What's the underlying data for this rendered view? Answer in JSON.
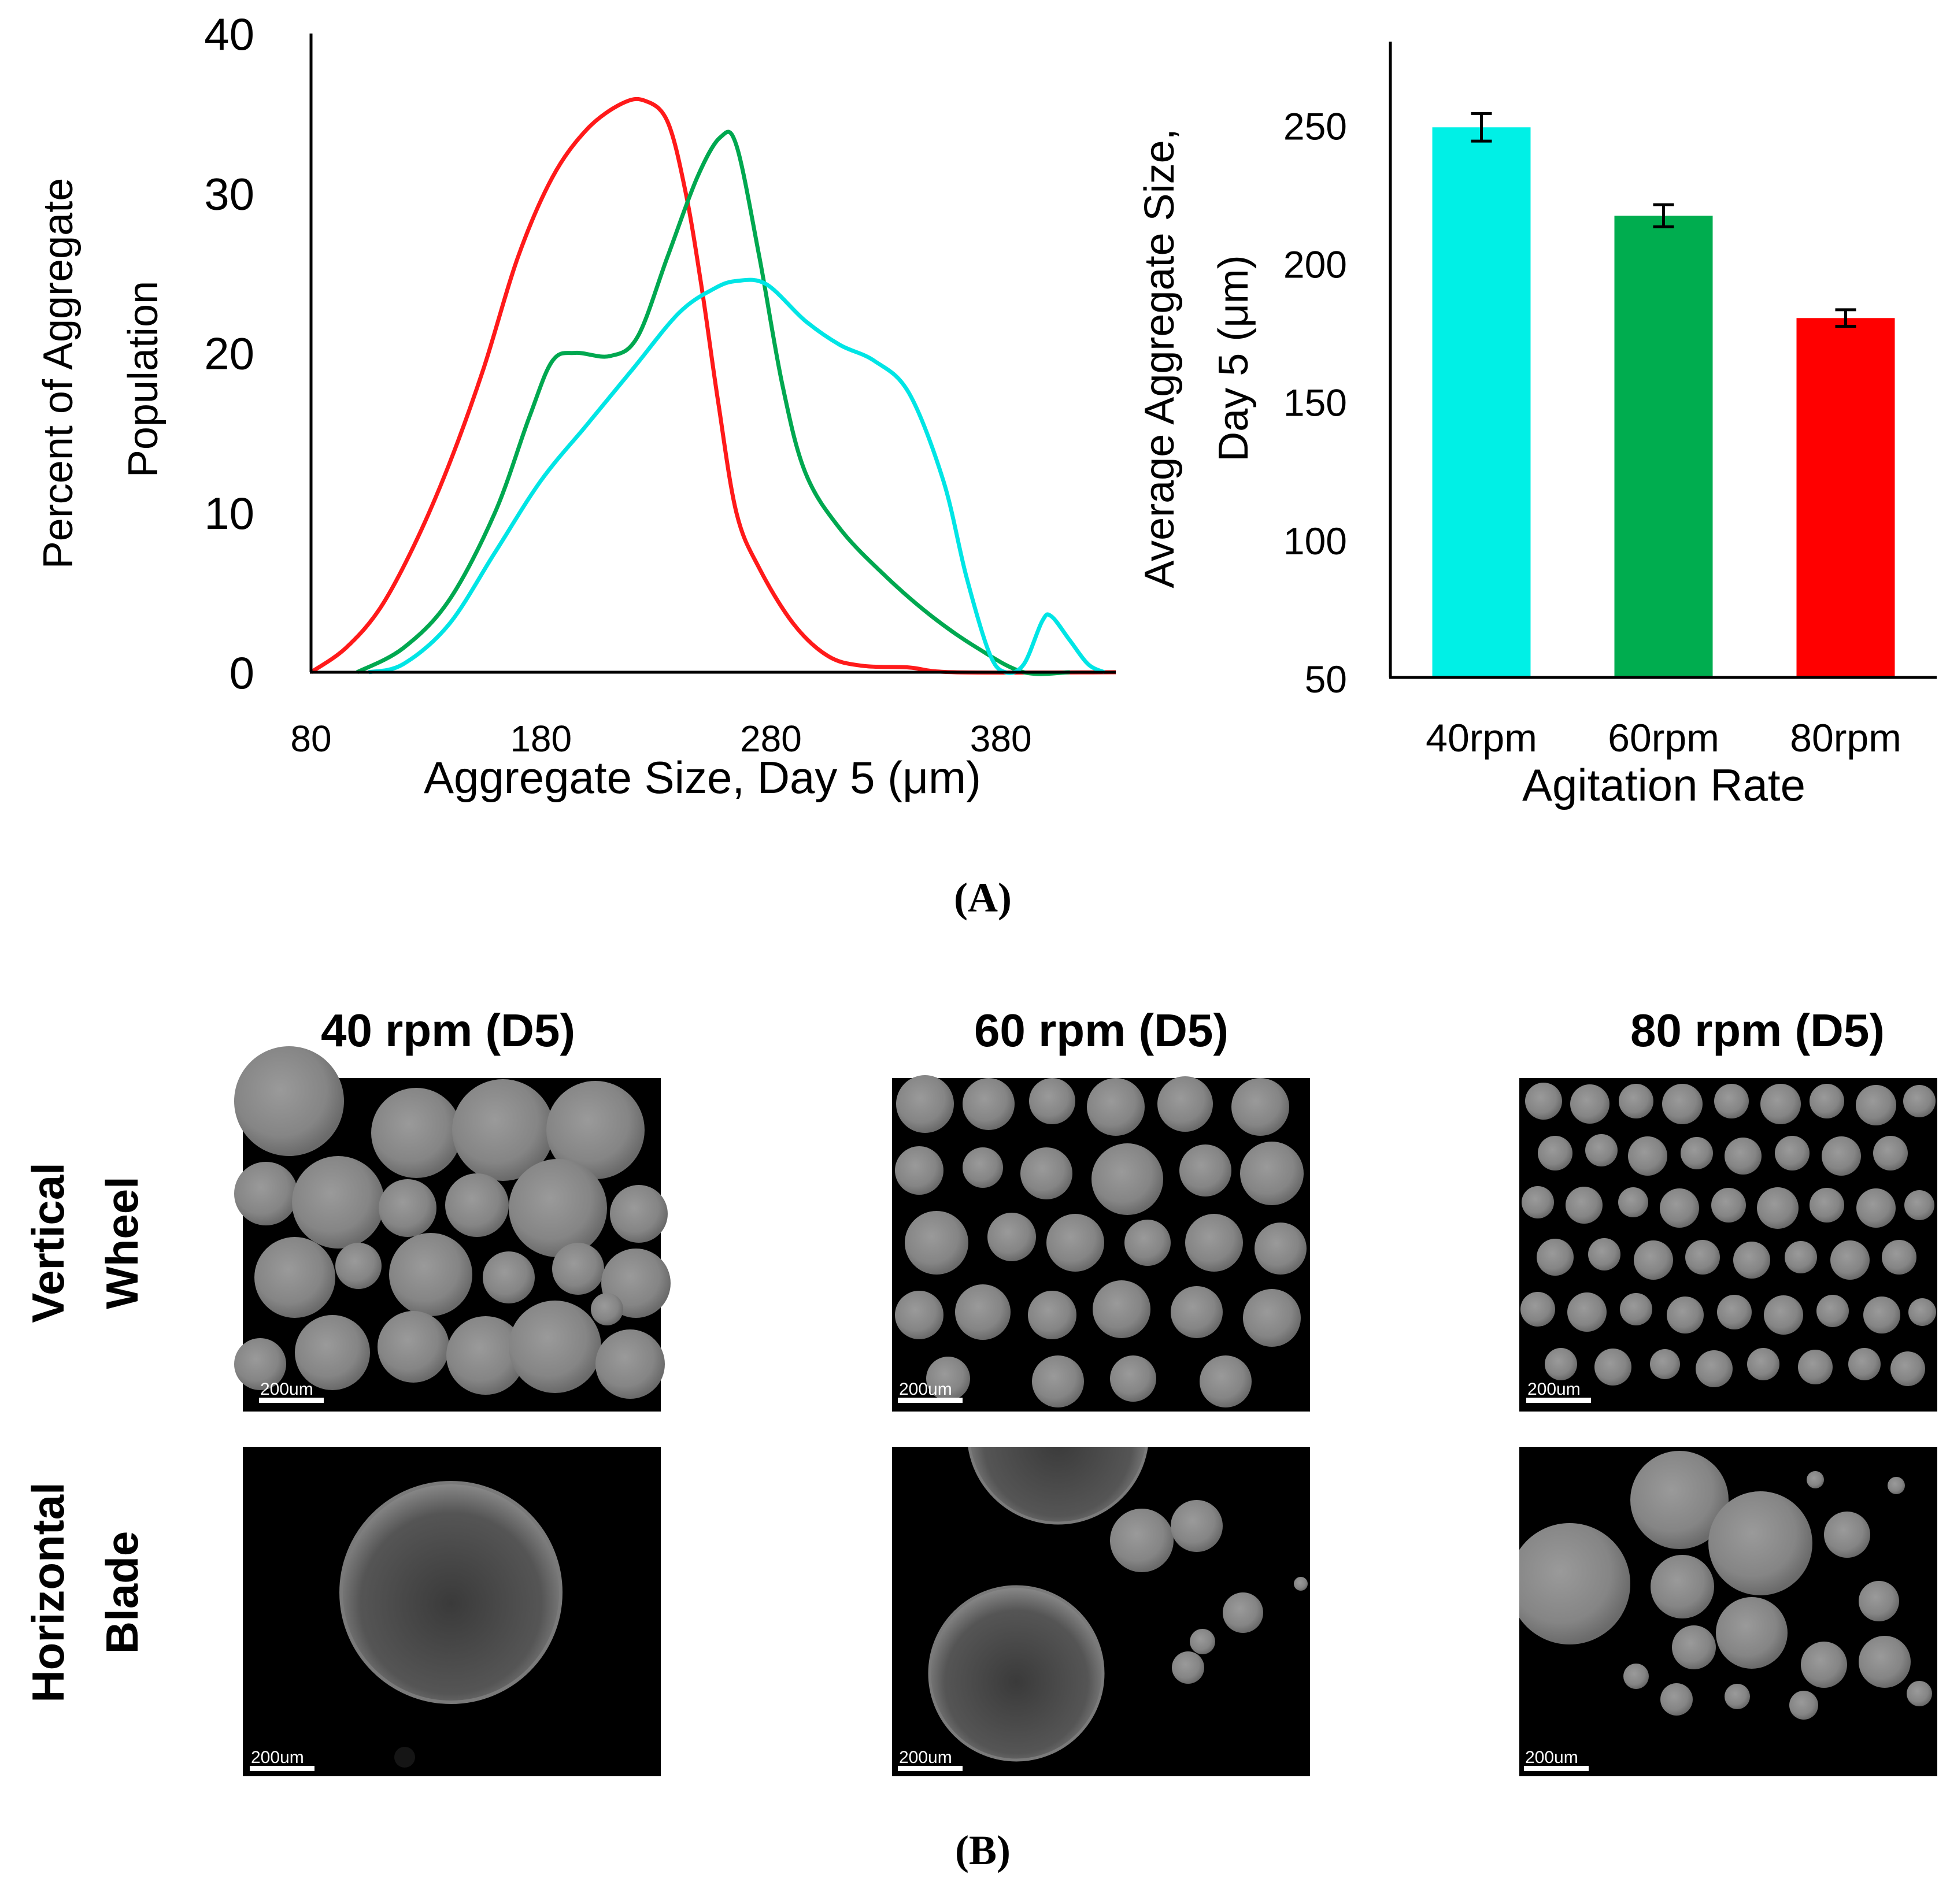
{
  "chart_data": [
    {
      "type": "line",
      "xlabel": "Aggregate Size,  Day 5 (μm)",
      "ylabel_lines": [
        "Percent of Aggregate",
        "Population"
      ],
      "xlim": [
        80,
        430
      ],
      "ylim": [
        0,
        40
      ],
      "xticks": [
        80,
        180,
        280,
        380
      ],
      "yticks": [
        0,
        10,
        20,
        30,
        40
      ],
      "series": [
        {
          "name": "80rpm",
          "color": "#ff1a1a",
          "points": [
            [
              80,
              0
            ],
            [
              95,
              1.5
            ],
            [
              110,
              4
            ],
            [
              125,
              8
            ],
            [
              140,
              13
            ],
            [
              155,
              19
            ],
            [
              170,
              26
            ],
            [
              185,
              31
            ],
            [
              200,
              34
            ],
            [
              215,
              35.6
            ],
            [
              225,
              35.8
            ],
            [
              235,
              34.5
            ],
            [
              243,
              30
            ],
            [
              250,
              24
            ],
            [
              257,
              17
            ],
            [
              265,
              10
            ],
            [
              275,
              6.5
            ],
            [
              290,
              3
            ],
            [
              305,
              1
            ],
            [
              320,
              0.4
            ],
            [
              340,
              0.3
            ],
            [
              360,
              0
            ],
            [
              430,
              0
            ]
          ]
        },
        {
          "name": "60rpm",
          "color": "#00a850",
          "points": [
            [
              100,
              0
            ],
            [
              120,
              1.5
            ],
            [
              140,
              4.5
            ],
            [
              160,
              10
            ],
            [
              175,
              16
            ],
            [
              185,
              19.5
            ],
            [
              195,
              20
            ],
            [
              210,
              19.8
            ],
            [
              222,
              21
            ],
            [
              235,
              26
            ],
            [
              248,
              31
            ],
            [
              258,
              33.5
            ],
            [
              265,
              33
            ],
            [
              275,
              26
            ],
            [
              285,
              18
            ],
            [
              295,
              12.5
            ],
            [
              310,
              9
            ],
            [
              330,
              6
            ],
            [
              350,
              3.5
            ],
            [
              370,
              1.5
            ],
            [
              390,
              0
            ],
            [
              410,
              0
            ]
          ]
        },
        {
          "name": "40rpm",
          "color": "#00e5e5",
          "points": [
            [
              105,
              0
            ],
            [
              120,
              0.5
            ],
            [
              140,
              3
            ],
            [
              160,
              7.5
            ],
            [
              180,
              12
            ],
            [
              200,
              15.5
            ],
            [
              220,
              19
            ],
            [
              240,
              22.5
            ],
            [
              255,
              24
            ],
            [
              265,
              24.5
            ],
            [
              278,
              24.3
            ],
            [
              295,
              22
            ],
            [
              310,
              20.5
            ],
            [
              325,
              19.5
            ],
            [
              340,
              17.5
            ],
            [
              355,
              12
            ],
            [
              365,
              6
            ],
            [
              375,
              1.2
            ],
            [
              382,
              0
            ],
            [
              390,
              0.5
            ],
            [
              398,
              3.2
            ],
            [
              402,
              3.5
            ],
            [
              410,
              2
            ],
            [
              418,
              0.5
            ],
            [
              425,
              0
            ]
          ]
        }
      ]
    },
    {
      "type": "bar",
      "categories": [
        "40rpm",
        "60rpm",
        "80rpm"
      ],
      "values": [
        249,
        217,
        180
      ],
      "errors": [
        5,
        4,
        3
      ],
      "colors": [
        "#00f0e6",
        "#00ad4f",
        "#ff0000"
      ],
      "xlabel": "Agitation Rate",
      "ylabel_lines": [
        "Average Aggregate Size,",
        "Day 5 (μm)"
      ],
      "ylim": [
        50,
        280
      ],
      "yticks": [
        50,
        100,
        150,
        200,
        250
      ]
    }
  ],
  "panel_labels": {
    "a": "(A)",
    "b": "(B)"
  },
  "micrographs": {
    "columns": [
      "40 rpm (D5)",
      "60 rpm (D5)",
      "80 rpm (D5)"
    ],
    "rows": [
      {
        "line1": "Vertical",
        "line2": "Wheel"
      },
      {
        "line1": "Horizontal",
        "line2": "Blade"
      }
    ],
    "scale_bar": "200um"
  }
}
